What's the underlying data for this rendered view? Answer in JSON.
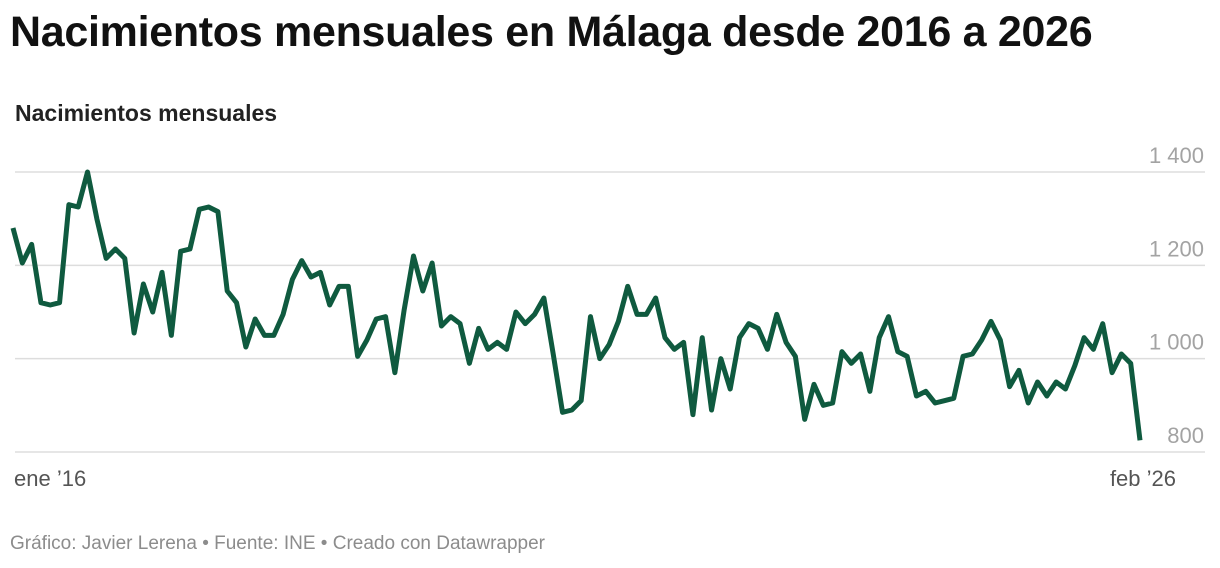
{
  "header": {
    "title": "Nacimientos mensuales en Málaga desde 2016 a 2026",
    "subtitle": "Nacimientos mensuales"
  },
  "footer": {
    "credit": "Gráfico: Javier Lerena • Fuente: INE • Creado con Datawrapper"
  },
  "colors": {
    "line": "#0f5a3f",
    "grid": "#dddddd",
    "tick": "#a3a3a3"
  },
  "chart_data": {
    "type": "line",
    "title": "Nacimientos mensuales en Málaga desde 2016 a 2026",
    "subtitle": "Nacimientos mensuales",
    "x_start": "ene ’16",
    "x_end": "feb ’26",
    "x_tick_labels": [
      "ene ’16",
      "feb ’26"
    ],
    "ylim": [
      800,
      1400
    ],
    "y_ticks": [
      800,
      1000,
      1200,
      1400
    ],
    "y_tick_labels": [
      "800",
      "1 000",
      "1 200",
      "1 400"
    ],
    "grid": true,
    "series": [
      {
        "values": [
          1280,
          1205,
          1245,
          1120,
          1115,
          1120,
          1330,
          1325,
          1400,
          1300,
          1215,
          1235,
          1215,
          1055,
          1160,
          1100,
          1185,
          1050,
          1230,
          1235,
          1320,
          1325,
          1315,
          1145,
          1120,
          1025,
          1085,
          1050,
          1050,
          1095,
          1170,
          1210,
          1175,
          1185,
          1115,
          1155,
          1155,
          1005,
          1040,
          1085,
          1090,
          970,
          1105,
          1220,
          1145,
          1205,
          1070,
          1090,
          1075,
          990,
          1065,
          1020,
          1035,
          1020,
          1100,
          1075,
          1095,
          1130,
          1010,
          885,
          890,
          910,
          1090,
          1000,
          1030,
          1080,
          1155,
          1095,
          1095,
          1130,
          1045,
          1020,
          1035,
          880,
          1045,
          890,
          1000,
          935,
          1045,
          1075,
          1065,
          1020,
          1095,
          1035,
          1005,
          870,
          945,
          900,
          905,
          1015,
          990,
          1010,
          930,
          1045,
          1090,
          1015,
          1005,
          920,
          930,
          905,
          910,
          915,
          1005,
          1010,
          1040,
          1080,
          1040,
          940,
          975,
          905,
          950,
          920,
          950,
          935,
          985,
          1045,
          1020,
          1075,
          970,
          1010,
          990,
          825
        ]
      }
    ]
  }
}
